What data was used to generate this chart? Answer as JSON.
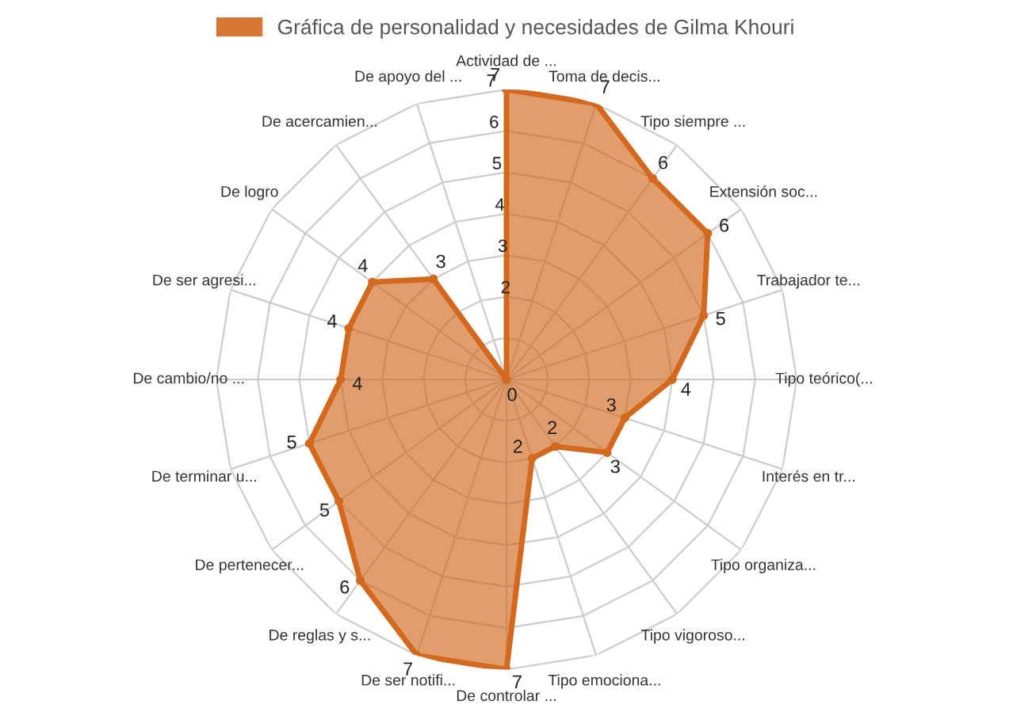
{
  "chart_data": {
    "type": "radar",
    "categories": [
      "Actividad de ...",
      "Toma de decis...",
      "Tipo siempre ...",
      "Extensión soc...",
      "Trabajador te...",
      "Tipo teórico(...",
      "Interés en tr...",
      "Tipo organiza...",
      "Tipo vigoroso...",
      "Tipo emociona...",
      "De controlar ...",
      "De ser notifi...",
      "De reglas y s...",
      "De pertenecer...",
      "De terminar u...",
      "De cambio/no ...",
      "De ser agresi...",
      "De logro",
      "De acercamien...",
      "De apoyo del ..."
    ],
    "series": [
      {
        "name": "Gráfica de personalidad y necesidades de Gilma Khouri",
        "color": "#d2691e",
        "values": [
          7,
          7,
          6,
          6,
          5,
          4,
          3,
          3,
          2,
          2,
          7,
          7,
          6,
          5,
          5,
          4,
          4,
          4,
          3,
          0
        ]
      }
    ],
    "ylim": [
      0,
      7
    ],
    "yticks": [
      2,
      3,
      4,
      5,
      6,
      7
    ],
    "grid": true,
    "legend": "top",
    "data_labels": true,
    "marker": "circle"
  }
}
